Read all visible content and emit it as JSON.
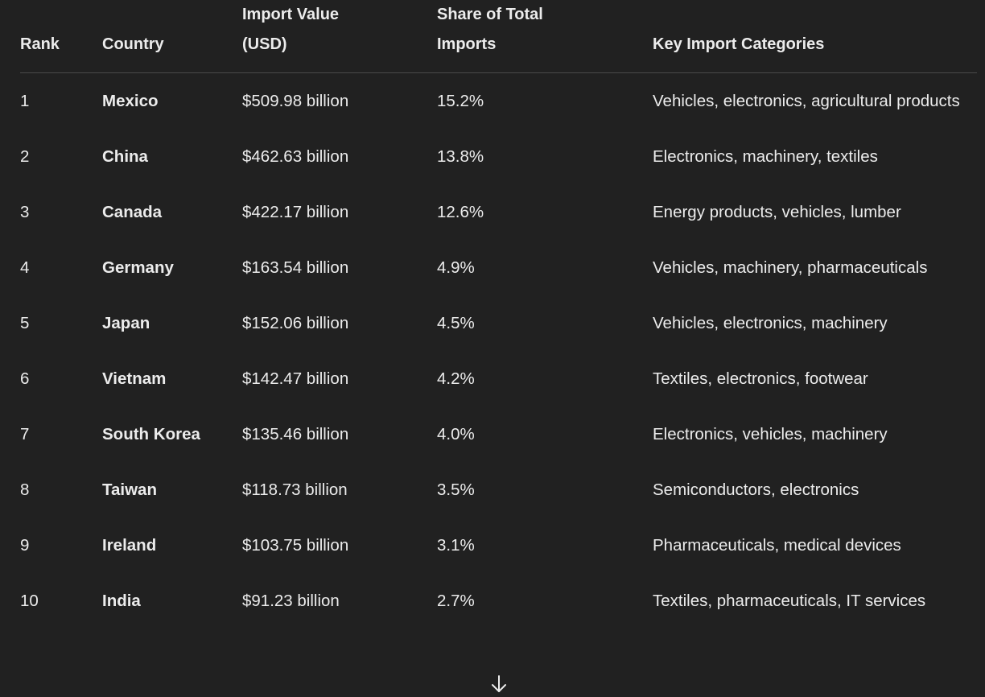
{
  "table": {
    "headers": {
      "rank": "Rank",
      "country": "Country",
      "import_value": "Import Value (USD)",
      "share": "Share of Total Imports",
      "categories": "Key Import Categories"
    },
    "rows": [
      {
        "rank": "1",
        "country": "Mexico",
        "value": "$509.98 billion",
        "share": "15.2%",
        "categories": "Vehicles, electronics, agricultural products"
      },
      {
        "rank": "2",
        "country": "China",
        "value": "$462.63 billion",
        "share": "13.8%",
        "categories": "Electronics, machinery, textiles"
      },
      {
        "rank": "3",
        "country": "Canada",
        "value": "$422.17 billion",
        "share": "12.6%",
        "categories": "Energy products, vehicles, lumber"
      },
      {
        "rank": "4",
        "country": "Germany",
        "value": "$163.54 billion",
        "share": "4.9%",
        "categories": "Vehicles, machinery, pharmaceuticals"
      },
      {
        "rank": "5",
        "country": "Japan",
        "value": "$152.06 billion",
        "share": "4.5%",
        "categories": "Vehicles, electronics, machinery"
      },
      {
        "rank": "6",
        "country": "Vietnam",
        "value": "$142.47 billion",
        "share": "4.2%",
        "categories": "Textiles, electronics, footwear"
      },
      {
        "rank": "7",
        "country": "South Korea",
        "value": "$135.46 billion",
        "share": "4.0%",
        "categories": "Electronics, vehicles, machinery"
      },
      {
        "rank": "8",
        "country": "Taiwan",
        "value": "$118.73 billion",
        "share": "3.5%",
        "categories": "Semiconductors, electronics"
      },
      {
        "rank": "9",
        "country": "Ireland",
        "value": "$103.75 billion",
        "share": "3.1%",
        "categories": "Pharmaceuticals, medical devices"
      },
      {
        "rank": "10",
        "country": "India",
        "value": "$91.23 billion",
        "share": "2.7%",
        "categories": "Textiles, pharmaceuticals, IT services"
      }
    ]
  },
  "scroll_button": {
    "icon": "arrow-down-icon"
  },
  "colors": {
    "background": "#212121",
    "text": "#ececec",
    "divider": "#4a4a4a"
  }
}
